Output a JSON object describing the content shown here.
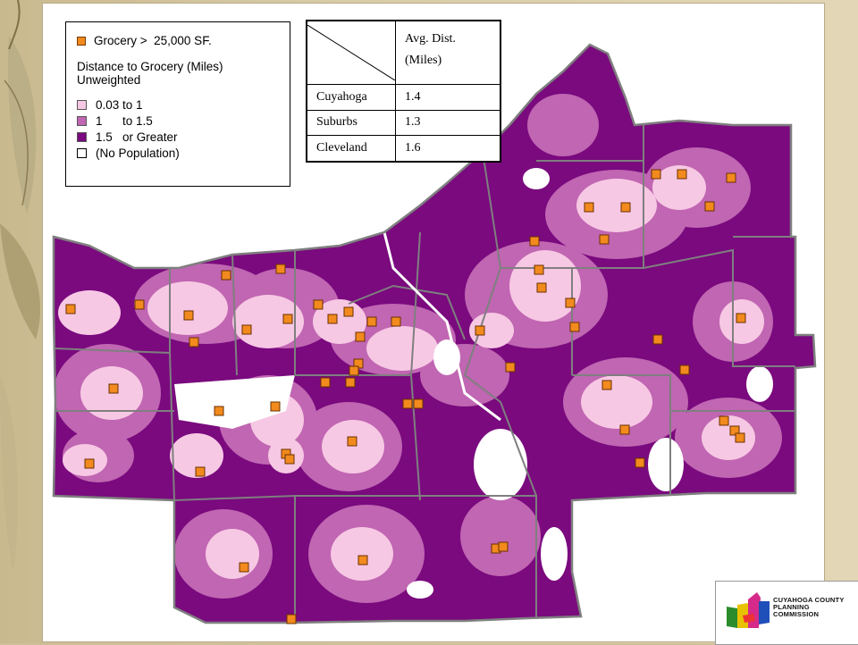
{
  "legend": {
    "grocery_label": "Grocery >  25,000 SF.",
    "title_line1": "Distance to Grocery (Miles)",
    "title_line2": "Unweighted",
    "classes": [
      {
        "label": "0.03 to 1",
        "color": "#f7c8e4"
      },
      {
        "label": "1      to 1.5",
        "color": "#c066b2"
      },
      {
        "label": "1.5   or Greater",
        "color": "#7a0a7e"
      },
      {
        "label": "(No Population)",
        "color": "#ffffff"
      }
    ],
    "grocery_color": "#f28a1e"
  },
  "table": {
    "header_line1": "Avg. Dist.",
    "header_line2": "(Miles)",
    "rows": [
      {
        "area": "Cuyahoga",
        "value": "1.4"
      },
      {
        "area": "Suburbs",
        "value": "1.3"
      },
      {
        "area": "Cleveland",
        "value": "1.6"
      }
    ]
  },
  "logo": {
    "line1": "CUYAHOGA COUNTY",
    "line2": "PLANNING",
    "line3": "COMMISSION"
  }
}
